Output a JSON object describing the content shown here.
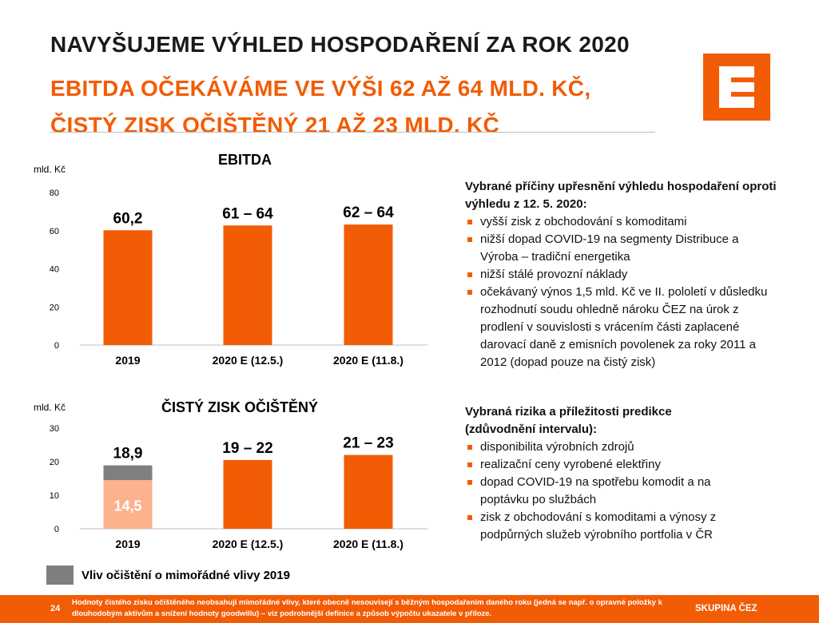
{
  "header": {
    "title_line1": "NAVYŠUJEME VÝHLED HOSPODAŘENÍ ZA ROK 2020",
    "title_line2": "EBITDA OČEKÁVÁME VE VÝŠI 62 AŽ 64 MLD. KČ,",
    "title_line3": "ČISTÝ ZISK OČIŠTĚNÝ 21 AŽ 23 MLD. KČ"
  },
  "logo": {
    "icon": "cez-logo-icon",
    "color": "#f25c05"
  },
  "colors": {
    "accent": "#f25c05",
    "light_accent": "#fbb28d",
    "adjustment": "#7f7f7f",
    "axis": "#bfbfbf"
  },
  "chart_data": [
    {
      "type": "bar",
      "title": "EBITDA",
      "ylabel": "mld. Kč",
      "ylim": [
        0,
        80
      ],
      "yticks": [
        0,
        20,
        40,
        60,
        80
      ],
      "categories": [
        "2019",
        "2020 E (12.5.)",
        "2020 E (11.8.)"
      ],
      "values": [
        60.2,
        62.7,
        63.2
      ],
      "labels": [
        "60,2",
        "61 – 64",
        "62 – 64"
      ],
      "grid": false,
      "legend": "none"
    },
    {
      "type": "bar",
      "stacked": true,
      "title": "ČISTÝ ZISK OČIŠTĚNÝ",
      "ylabel": "mld. Kč",
      "ylim": [
        0,
        30
      ],
      "yticks": [
        0,
        10,
        20,
        30
      ],
      "categories": [
        "2019",
        "2020 E (12.5.)",
        "2020 E (11.8.)"
      ],
      "values": [
        18.9,
        20.5,
        22.0
      ],
      "labels": [
        "18,9",
        "19 – 22",
        "21 – 23"
      ],
      "base_2019": {
        "value": 14.5,
        "label": "14,5"
      },
      "adjustment_2019": {
        "value": 4.4
      },
      "grid": false,
      "legend": "bottom-left"
    }
  ],
  "legend": {
    "label": "Vliv očištění o mimořádné vlivy 2019"
  },
  "reasons": {
    "heading": "Vybrané příčiny upřesnění výhledu hospodaření oproti výhledu z 12. 5. 2020:",
    "items": [
      "vyšší zisk z obchodování s komoditami",
      "nižší dopad COVID-19 na segmenty Distribuce a Výroba – tradiční energetika",
      "nižší stálé provozní náklady",
      "očekávaný výnos 1,5 mld. Kč ve II. pololetí v důsledku rozhodnutí soudu ohledně nároku ČEZ na úrok z prodlení v souvislosti s vrácením části zaplacené darovací daně z emisních povolenek za roky 2011 a 2012 (dopad pouze na čistý zisk)"
    ]
  },
  "risks": {
    "heading": "Vybraná rizika a příležitosti predikce (zdůvodnění intervalu):",
    "items": [
      "disponibilita výrobních zdrojů",
      "realizační ceny vyrobené elektřiny",
      "dopad COVID-19 na spotřebu komodit a na poptávku po službách",
      "zisk z obchodování s komoditami a výnosy z podpůrných služeb výrobního portfolia v ČR"
    ]
  },
  "footer": {
    "page": "24",
    "note": "Hodnoty čistého zisku očištěného neobsahují mimořádné vlivy, které obecně nesouvisejí s běžným hospodařením daného roku (jedná se např. o opravné položky k dlouhodobým aktivům a snížení hodnoty goodwillu) – viz podrobnější definice a způsob výpočtu ukazatele v příloze.",
    "brand": "SKUPINA ČEZ"
  }
}
